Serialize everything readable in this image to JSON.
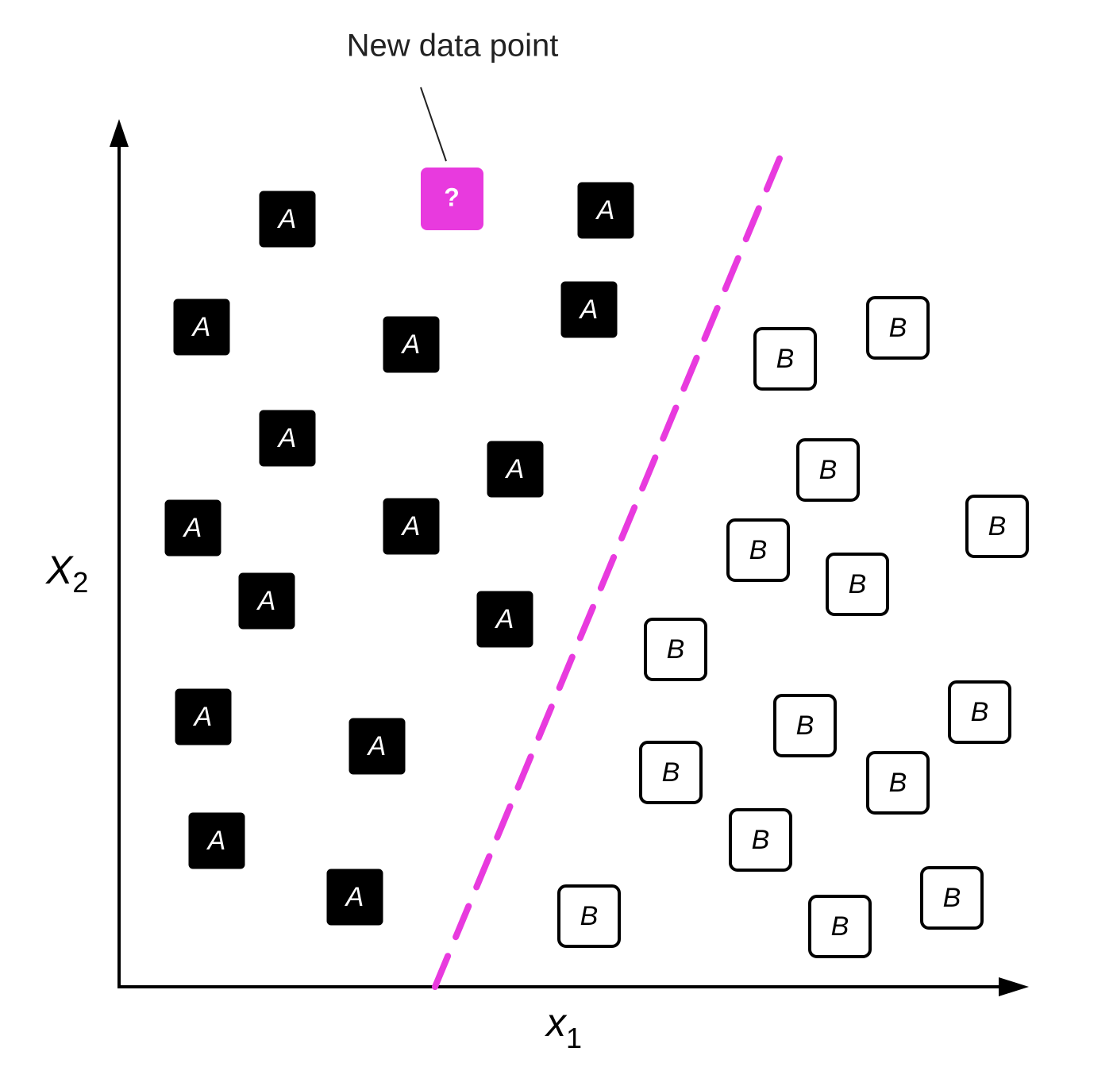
{
  "annotation": "New data point",
  "x_axis": {
    "symbol": "x",
    "subscript": "1"
  },
  "y_axis": {
    "symbol": "X",
    "subscript": "2"
  },
  "new_point": "?",
  "points": [
    "A",
    "A",
    "A",
    "A",
    "A",
    "A",
    "A",
    "A",
    "A",
    "A",
    "A",
    "A",
    "A",
    "A",
    "A",
    "B",
    "B",
    "B",
    "B",
    "B",
    "B",
    "B",
    "B",
    "B",
    "B",
    "B",
    "B",
    "B",
    "B",
    "B"
  ]
}
